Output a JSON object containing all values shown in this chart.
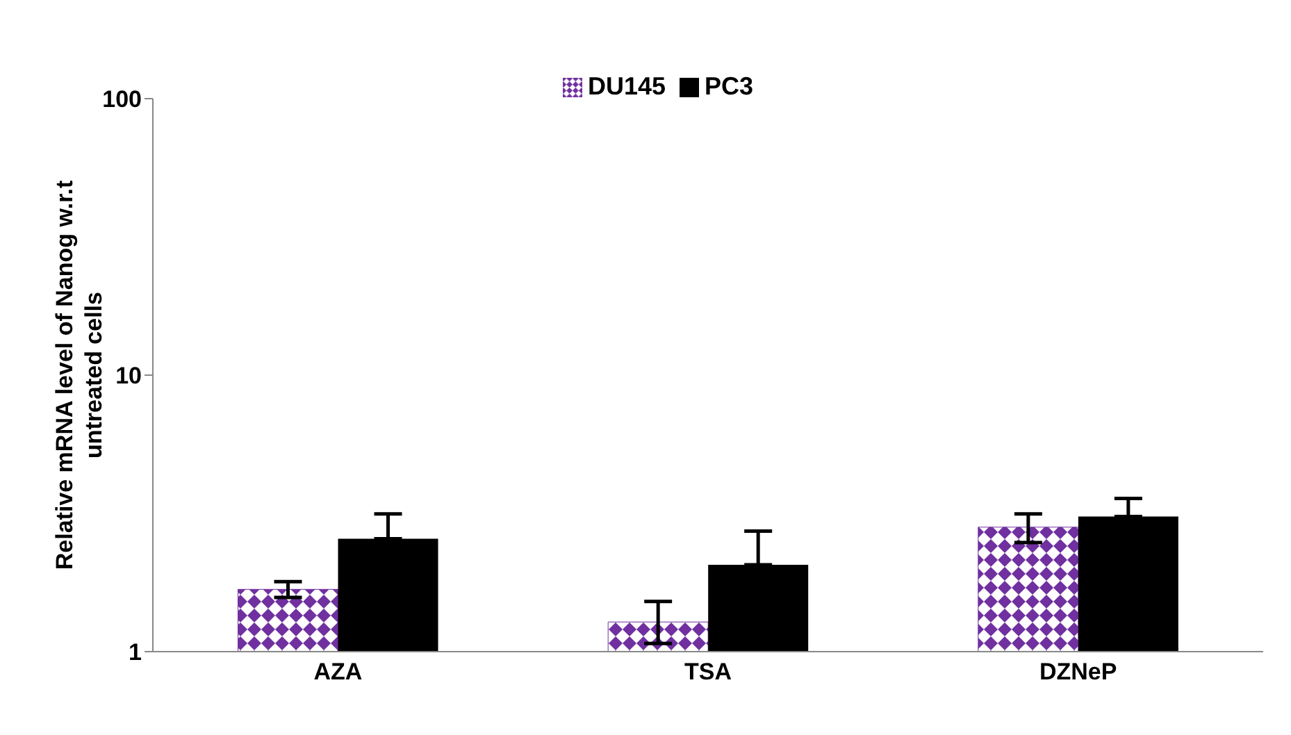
{
  "chart_data": {
    "type": "bar",
    "ylabel": "Relative mRNA level of Nanog w.r.t untreated cells",
    "categories": [
      "AZA",
      "TSA",
      "DZNeP"
    ],
    "series": [
      {
        "name": "DU145",
        "color": "#7030a0",
        "values": [
          1.68,
          1.28,
          2.82
        ],
        "errors": [
          [
            1.57,
            1.79
          ],
          [
            1.07,
            1.52
          ],
          [
            2.48,
            3.15
          ]
        ]
      },
      {
        "name": "PC3",
        "color": "#000000",
        "values": [
          2.56,
          2.06,
          3.08
        ],
        "errors": [
          [
            2.56,
            3.15
          ],
          [
            2.06,
            2.73
          ],
          [
            3.08,
            3.58
          ]
        ]
      }
    ],
    "log": true,
    "ylim": [
      1,
      100
    ],
    "yticks": [
      1,
      10,
      100
    ],
    "grid": false,
    "legend": "top"
  }
}
